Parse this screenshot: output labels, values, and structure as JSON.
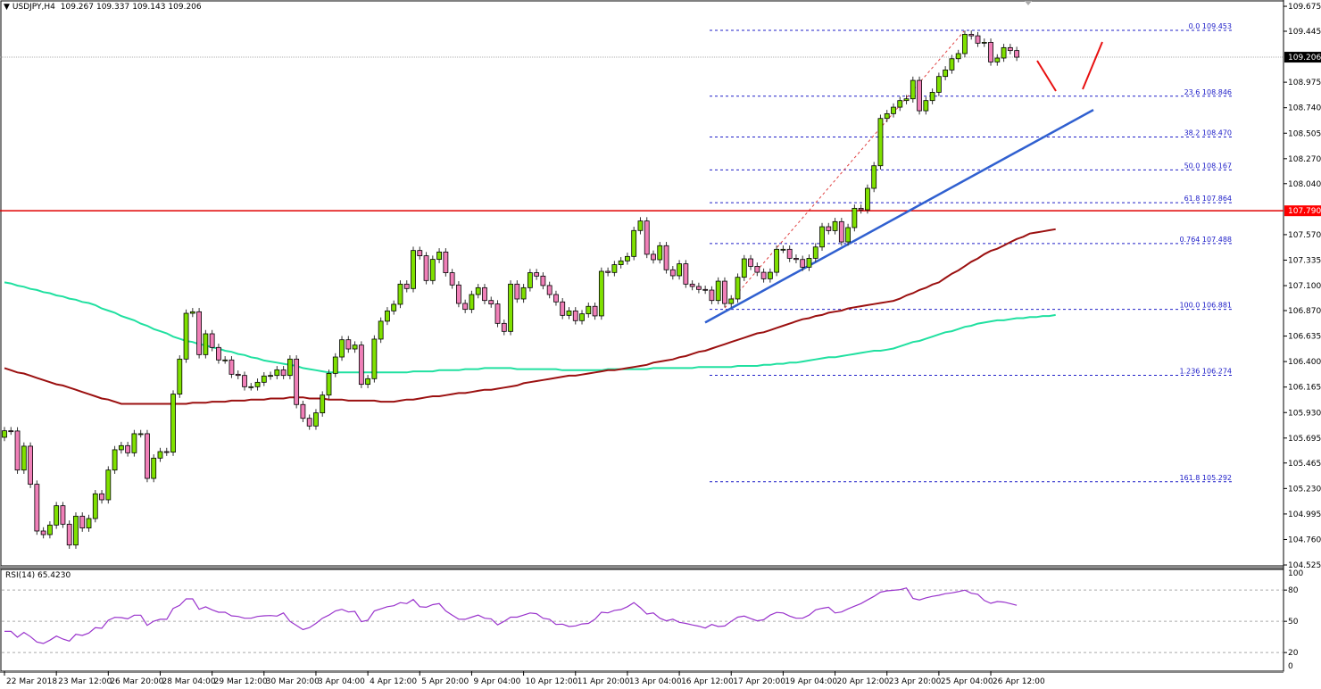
{
  "header": {
    "symbol_tf": "USDJPY,H4",
    "open": "109.267",
    "high": "109.337",
    "low": "109.143",
    "close": "109.206"
  },
  "rsi_header": {
    "label": "RSI(14)",
    "value": "65.4230"
  },
  "colors": {
    "bull": "#7fe000",
    "bear": "#f080b8",
    "ma_fast": "#9b1010",
    "ma_slow": "#20e0a0",
    "rsi": "#9933cc",
    "fib": "#2020c8",
    "trendline": "#3060d0",
    "resistance": "#e00000",
    "price_tag": "#000000",
    "resistance_tag": "#ff0000"
  },
  "chart_data": {
    "type": "candlestick",
    "symbol": "USDJPY",
    "timeframe": "H4",
    "ylim": [
      104.525,
      109.675
    ],
    "price_ticks": [
      "109.675",
      "109.445",
      "108.975",
      "108.740",
      "108.505",
      "108.270",
      "108.040",
      "107.570",
      "107.335",
      "107.100",
      "106.870",
      "106.635",
      "106.400",
      "106.165",
      "105.930",
      "105.695",
      "105.465",
      "105.230",
      "104.995",
      "104.760",
      "104.525"
    ],
    "time_ticks": [
      "22 Mar 2018",
      "23 Mar 12:00",
      "26 Mar 20:00",
      "28 Mar 04:00",
      "29 Mar 12:00",
      "30 Mar 20:00",
      "3 Apr 04:00",
      "4 Apr 12:00",
      "5 Apr 20:00",
      "9 Apr 04:00",
      "10 Apr 12:00",
      "11 Apr 20:00",
      "13 Apr 04:00",
      "16 Apr 12:00",
      "17 Apr 20:00",
      "19 Apr 04:00",
      "20 Apr 12:00",
      "23 Apr 20:00",
      "25 Apr 04:00",
      "26 Apr 12:00"
    ],
    "closes": [
      105.762,
      105.76,
      105.4,
      105.62,
      105.269,
      104.838,
      104.805,
      104.893,
      105.071,
      104.901,
      104.709,
      104.975,
      104.866,
      104.953,
      105.181,
      105.126,
      105.4,
      105.587,
      105.625,
      105.559,
      105.735,
      105.735,
      105.323,
      105.51,
      105.57,
      105.565,
      106.1,
      106.423,
      106.845,
      106.859,
      106.464,
      106.656,
      106.53,
      106.415,
      106.415,
      106.283,
      106.272,
      106.168,
      106.168,
      106.209,
      106.267,
      106.272,
      106.324,
      106.272,
      106.423,
      106.004,
      105.877,
      105.806,
      105.927,
      106.091,
      106.291,
      106.442,
      106.601,
      106.516,
      106.552,
      106.19,
      106.242,
      106.607,
      106.772,
      106.867,
      106.928,
      107.114,
      107.073,
      107.424,
      107.375,
      107.147,
      107.342,
      107.41,
      107.219,
      107.106,
      106.936,
      106.881,
      107.018,
      107.081,
      106.963,
      106.931,
      106.752,
      106.678,
      107.114,
      106.977,
      107.081,
      107.219,
      107.188,
      107.101,
      107.018,
      106.95,
      106.826,
      106.867,
      106.777,
      106.84,
      106.909,
      106.821,
      107.232,
      107.221,
      107.293,
      107.328,
      107.369,
      107.608,
      107.696,
      107.389,
      107.339,
      107.468,
      107.246,
      107.191,
      107.301,
      107.114,
      107.092,
      107.065,
      107.059,
      106.963,
      107.141,
      106.935,
      106.977,
      107.177,
      107.347,
      107.278,
      107.223,
      107.163,
      107.223,
      107.435,
      107.435,
      107.352,
      107.341,
      107.27,
      107.352,
      107.456,
      107.643,
      107.607,
      107.69,
      107.503,
      107.635,
      107.813,
      107.799,
      107.997,
      108.205,
      108.641,
      108.685,
      108.745,
      108.806,
      108.822,
      108.992,
      108.712,
      108.806,
      108.882,
      109.028,
      109.088,
      109.192,
      109.239,
      109.417,
      109.403,
      109.335,
      109.343,
      109.162,
      109.198,
      109.294,
      109.267,
      109.206
    ],
    "ma_fast": [
      106.34,
      106.32,
      106.3,
      106.29,
      106.27,
      106.25,
      106.23,
      106.21,
      106.19,
      106.18,
      106.16,
      106.14,
      106.12,
      106.1,
      106.08,
      106.06,
      106.05,
      106.03,
      106.01,
      106.01,
      106.01,
      106.01,
      106.01,
      106.01,
      106.01,
      106.01,
      106.01,
      106.01,
      106.01,
      106.02,
      106.02,
      106.02,
      106.03,
      106.03,
      106.03,
      106.04,
      106.04,
      106.04,
      106.05,
      106.05,
      106.05,
      106.06,
      106.06,
      106.06,
      106.07,
      106.07,
      106.07,
      106.06,
      106.06,
      106.06,
      106.05,
      106.05,
      106.05,
      106.04,
      106.04,
      106.04,
      106.04,
      106.04,
      106.03,
      106.03,
      106.03,
      106.04,
      106.05,
      106.05,
      106.06,
      106.07,
      106.08,
      106.08,
      106.09,
      106.1,
      106.11,
      106.11,
      106.12,
      106.13,
      106.14,
      106.14,
      106.15,
      106.16,
      106.17,
      106.18,
      106.2,
      106.21,
      106.22,
      106.23,
      106.24,
      106.25,
      106.26,
      106.27,
      106.27,
      106.28,
      106.29,
      106.3,
      106.31,
      106.32,
      106.32,
      106.33,
      106.34,
      106.35,
      106.36,
      106.37,
      106.39,
      106.4,
      106.41,
      106.42,
      106.44,
      106.45,
      106.47,
      106.49,
      106.5,
      106.52,
      106.54,
      106.56,
      106.58,
      106.6,
      106.62,
      106.64,
      106.66,
      106.67,
      106.69,
      106.71,
      106.73,
      106.75,
      106.77,
      106.79,
      106.8,
      106.82,
      106.83,
      106.85,
      106.86,
      106.87,
      106.89,
      106.9,
      106.91,
      106.92,
      106.93,
      106.94,
      106.95,
      106.96,
      106.98,
      107.01,
      107.03,
      107.06,
      107.08,
      107.11,
      107.13,
      107.17,
      107.21,
      107.24,
      107.28,
      107.32,
      107.35,
      107.39,
      107.42,
      107.44,
      107.47,
      107.5,
      107.53,
      107.55,
      107.58,
      107.59,
      107.6,
      107.61,
      107.62
    ],
    "ma_slow": [
      107.13,
      107.12,
      107.1,
      107.09,
      107.07,
      107.06,
      107.04,
      107.03,
      107.01,
      107.0,
      106.98,
      106.97,
      106.95,
      106.94,
      106.92,
      106.89,
      106.87,
      106.85,
      106.82,
      106.8,
      106.78,
      106.75,
      106.73,
      106.7,
      106.68,
      106.66,
      106.63,
      106.61,
      106.59,
      106.58,
      106.56,
      106.55,
      106.53,
      106.52,
      106.5,
      106.49,
      106.47,
      106.46,
      106.44,
      106.43,
      106.41,
      106.4,
      106.39,
      106.38,
      106.37,
      106.36,
      106.34,
      106.33,
      106.32,
      106.31,
      106.3,
      106.3,
      106.3,
      106.3,
      106.3,
      106.3,
      106.3,
      106.3,
      106.3,
      106.3,
      106.3,
      106.3,
      106.3,
      106.31,
      106.31,
      106.31,
      106.31,
      106.32,
      106.32,
      106.32,
      106.32,
      106.33,
      106.33,
      106.33,
      106.34,
      106.34,
      106.34,
      106.34,
      106.34,
      106.33,
      106.33,
      106.33,
      106.33,
      106.33,
      106.33,
      106.33,
      106.32,
      106.32,
      106.32,
      106.32,
      106.32,
      106.32,
      106.32,
      106.33,
      106.33,
      106.33,
      106.33,
      106.33,
      106.33,
      106.33,
      106.34,
      106.34,
      106.34,
      106.34,
      106.34,
      106.34,
      106.34,
      106.35,
      106.35,
      106.35,
      106.35,
      106.35,
      106.35,
      106.36,
      106.36,
      106.36,
      106.36,
      106.37,
      106.37,
      106.38,
      106.38,
      106.39,
      106.39,
      106.4,
      106.41,
      106.42,
      106.43,
      106.44,
      106.44,
      106.45,
      106.46,
      106.47,
      106.48,
      106.49,
      106.5,
      106.5,
      106.51,
      106.52,
      106.54,
      106.56,
      106.58,
      106.59,
      106.61,
      106.63,
      106.65,
      106.67,
      106.68,
      106.7,
      106.72,
      106.73,
      106.75,
      106.76,
      106.77,
      106.78,
      106.78,
      106.79,
      106.8,
      106.8,
      106.81,
      106.81,
      106.82,
      106.82,
      106.83
    ],
    "rsi": {
      "period": 14,
      "ylim": [
        0,
        100
      ],
      "levels": [
        "80",
        "50",
        "20"
      ],
      "scale_labels": [
        "100",
        "80",
        "50",
        "20",
        "0"
      ],
      "values": [
        40.4,
        40.4,
        34.7,
        39.3,
        35.3,
        30.2,
        28.7,
        31.9,
        35.8,
        33,
        31,
        37.5,
        36.4,
        38.7,
        43.9,
        43.3,
        51,
        53.8,
        53.6,
        52.4,
        55.9,
        55.9,
        46.1,
        50.1,
        51.9,
        51.9,
        62.4,
        65.3,
        71.6,
        71.6,
        61.5,
        63.9,
        61,
        58.7,
        58.7,
        55.3,
        54.7,
        53,
        53,
        54.7,
        55.3,
        55.5,
        55,
        58,
        50,
        46.1,
        42,
        44,
        48,
        53,
        56,
        60,
        61.5,
        59,
        59.6,
        49.6,
        51,
        60,
        62,
        64,
        65,
        68,
        67,
        71,
        64,
        63.5,
        66,
        67,
        60,
        56,
        52,
        51.9,
        54,
        56,
        53,
        52.4,
        46.5,
        50,
        54,
        54,
        56,
        58,
        57.3,
        53,
        51.9,
        47,
        47.3,
        45,
        45.6,
        47.5,
        48,
        52,
        58.7,
        58.1,
        60.5,
        61.3,
        64,
        68,
        63,
        57,
        58,
        53,
        50.5,
        52,
        49,
        48,
        46.5,
        45.3,
        43.5,
        47,
        45,
        45.5,
        50,
        54,
        55,
        52.6,
        50.5,
        51.5,
        56,
        58.5,
        58,
        55,
        53,
        53,
        56,
        61,
        62.5,
        63.5,
        58,
        59,
        62,
        64.5,
        67,
        70.5,
        74,
        78,
        79.3,
        79.8,
        80.4,
        82,
        72,
        70.5,
        72.5,
        74,
        75,
        76.5,
        77.3,
        78.5,
        80,
        77,
        75.9,
        70,
        67.3,
        69,
        68.5,
        67,
        65.4
      ]
    },
    "fibonacci": [
      {
        "label": "0.0 109.453",
        "price": 109.453
      },
      {
        "label": "23.6 108.846",
        "price": 108.846
      },
      {
        "label": "38.2 108.470",
        "price": 108.47
      },
      {
        "label": "50.0 108.167",
        "price": 108.167
      },
      {
        "label": "61.8 107.864",
        "price": 107.864
      },
      {
        "label": "0.764 107.488",
        "price": 107.488
      },
      {
        "label": "100.0 106.881",
        "price": 106.881
      },
      {
        "label": "1.236 106.274",
        "price": 106.274
      },
      {
        "label": "161.8 105.292",
        "price": 105.292
      }
    ],
    "resistance": {
      "price": 107.79,
      "label": "107.790"
    },
    "current_price": {
      "price": 109.206,
      "label": "109.206"
    },
    "trendline": {
      "start_price": 106.76,
      "end_price": 108.72
    }
  }
}
